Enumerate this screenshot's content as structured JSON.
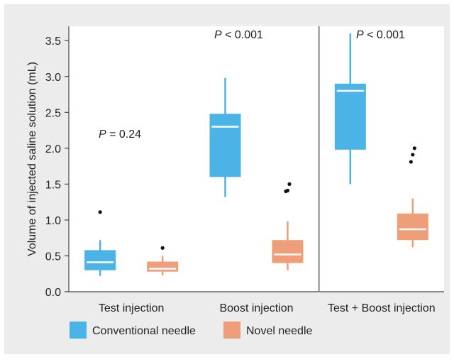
{
  "chart_data": {
    "type": "box",
    "ylabel": "Volume of injected saline solution (mL)",
    "ylim": [
      0,
      3.7
    ],
    "yticks": [
      "0.0",
      "0.5",
      "1.0",
      "1.5",
      "2.0",
      "2.5",
      "3.0",
      "3.5"
    ],
    "grid": false,
    "legend_position": "bottom-left",
    "groups": [
      "Test injection",
      "Boost injection",
      "Test + Boost injection"
    ],
    "pvalues": [
      {
        "label": "P",
        "text": " = 0.24",
        "group": 0
      },
      {
        "label": "P",
        "text": " < 0.001",
        "group": 1
      },
      {
        "label": "P",
        "text": " < 0.001",
        "group": 2
      }
    ],
    "series": [
      {
        "name": "Conventional needle",
        "color": "#4bb3e6",
        "boxes": [
          {
            "min": 0.22,
            "q1": 0.3,
            "median": 0.41,
            "q3": 0.58,
            "max": 0.72,
            "outliers": [
              1.11
            ]
          },
          {
            "min": 1.32,
            "q1": 1.6,
            "median": 2.3,
            "q3": 2.48,
            "max": 2.98,
            "outliers": []
          },
          {
            "min": 1.5,
            "q1": 1.98,
            "median": 2.8,
            "q3": 2.9,
            "max": 3.6,
            "outliers": []
          }
        ]
      },
      {
        "name": "Novel needle",
        "color": "#ee9e79",
        "boxes": [
          {
            "min": 0.23,
            "q1": 0.28,
            "median": 0.32,
            "q3": 0.42,
            "max": 0.5,
            "outliers": [
              0.61
            ]
          },
          {
            "min": 0.3,
            "q1": 0.4,
            "median": 0.52,
            "q3": 0.72,
            "max": 0.98,
            "outliers": [
              1.4,
              1.41,
              1.5
            ]
          },
          {
            "min": 0.62,
            "q1": 0.72,
            "median": 0.87,
            "q3": 1.09,
            "max": 1.3,
            "outliers": [
              1.81,
              1.91,
              2.0
            ]
          }
        ]
      }
    ]
  }
}
